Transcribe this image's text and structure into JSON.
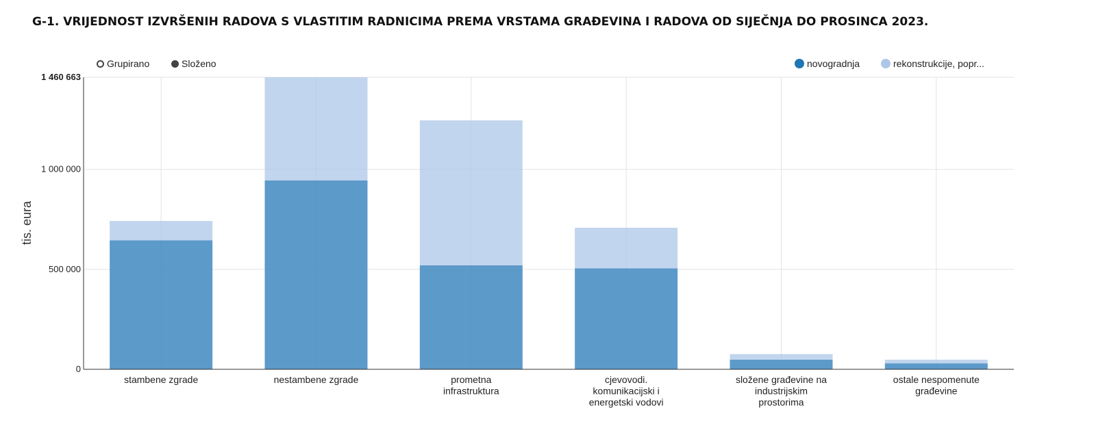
{
  "title": "G-1. VRIJEDNOST IZVRŠENIH RADOVA S VLASTITIM RADNICIMA PREMA VRSTAMA GRAĐEVINA I RADOVA OD SIJEČNJA DO PROSINCA 2023.",
  "controls": {
    "grouped_label": "Grupirano",
    "stacked_label": "Složeno"
  },
  "legend": [
    {
      "label": "novogradnja",
      "color": "#2077b4"
    },
    {
      "label": "rekonstrukcije, popr...",
      "color": "#aec7e8"
    }
  ],
  "chart_data": {
    "type": "bar",
    "stacked": true,
    "ylabel": "tis. eura",
    "ylim": [
      0,
      1460663
    ],
    "yticks": [
      0,
      500000,
      1000000,
      1460663
    ],
    "ytick_labels": [
      "0",
      "500 000",
      "1 000 000",
      "1 460 663"
    ],
    "grid": true,
    "legend_position": "top-right",
    "categories": [
      [
        "stambene zgrade"
      ],
      [
        "nestambene zgrade"
      ],
      [
        "prometna",
        "infrastruktura"
      ],
      [
        "cjevovodi.",
        "komunikacijski i",
        "energetski vodovi"
      ],
      [
        "složene građevine na",
        "industrijskim",
        "prostorima"
      ],
      [
        "ostale nespomenute",
        "građevine"
      ]
    ],
    "series": [
      {
        "name": "novogradnja",
        "color": "#4a8fc4",
        "values": [
          645000,
          945000,
          520000,
          505000,
          48000,
          30000
        ]
      },
      {
        "name": "rekonstrukcije, popr...",
        "color": "#aec7e8",
        "values": [
          97000,
          515663,
          725000,
          203000,
          28000,
          18000
        ]
      }
    ]
  }
}
